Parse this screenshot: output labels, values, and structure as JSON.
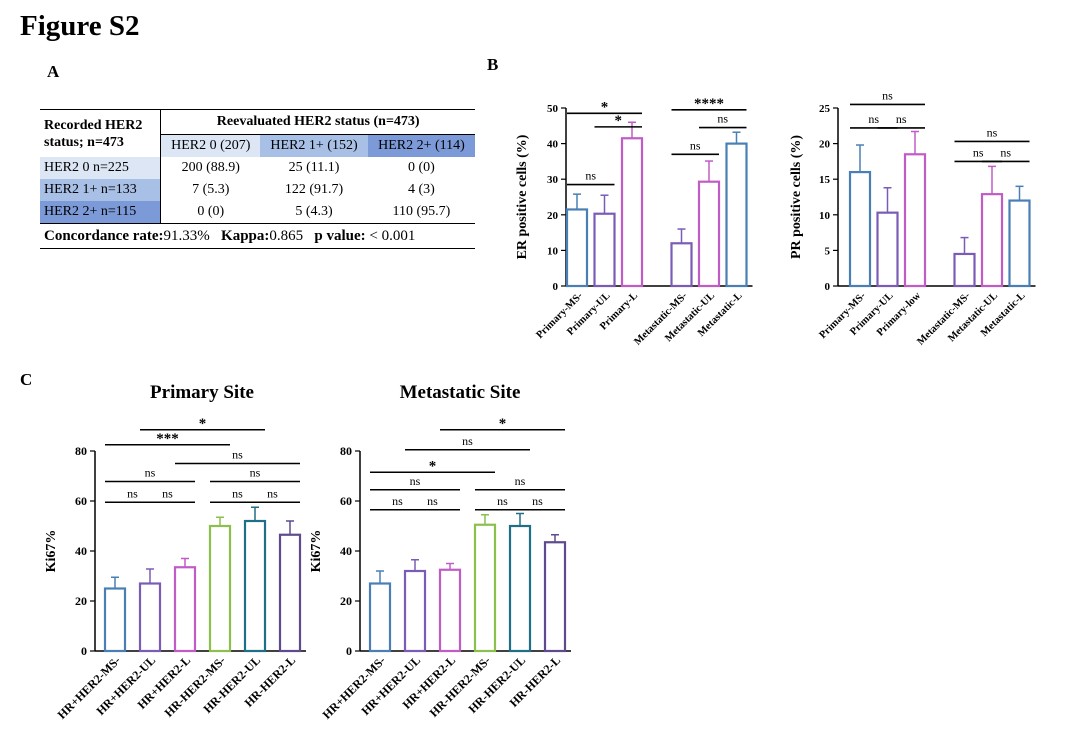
{
  "figure_title": "Figure S2",
  "panels": {
    "a": "A",
    "b": "B",
    "c": "C"
  },
  "table": {
    "row_header": [
      "Recorded HER2",
      "status; n=473"
    ],
    "col_header": "Reevaluated HER2 status (n=473)",
    "columns": [
      "HER2 0 (207)",
      "HER2 1+ (152)",
      "HER2 2+ (114)"
    ],
    "rows": [
      {
        "label": "HER2 0 n=225",
        "cells": [
          "200 (88.9)",
          "25 (11.1)",
          "0 (0)"
        ]
      },
      {
        "label": "HER2 1+ n=133",
        "cells": [
          "7 (5.3)",
          "122 (91.7)",
          "4 (3)"
        ]
      },
      {
        "label": "HER2 2+ n=115",
        "cells": [
          "0 (0)",
          "5 (4.3)",
          "110 (95.7)"
        ]
      }
    ],
    "footer": {
      "concordance_label": "Concordance rate:",
      "concordance_value": "91.33%",
      "kappa_label": "Kappa:",
      "kappa_value": "0.865",
      "p_label": "p value:",
      "p_value": "< 0.001"
    }
  },
  "colors": {
    "blue": "#4a7fb5",
    "purple": "#7a5cb7",
    "magenta": "#c15cc7",
    "green": "#8bbf4e",
    "teal": "#1f6f86",
    "darkpurple": "#5e4a8c"
  },
  "chart_data": [
    {
      "id": "er",
      "type": "bar",
      "title": "",
      "xlabel": "",
      "ylabel": "ER positive cells (%)",
      "ylim": [
        0,
        50
      ],
      "yticks": [
        0,
        10,
        20,
        30,
        40,
        50
      ],
      "categories": [
        "Primary-MS-",
        "Primary-UL",
        "Primary-L",
        "Metastatic-MS-",
        "Metastatic-UL",
        "Metastatic-L"
      ],
      "values": [
        21.5,
        20.3,
        41.5,
        12.0,
        29.3,
        40.0
      ],
      "errors": [
        4.3,
        5.2,
        4.5,
        4.0,
        5.8,
        3.2
      ],
      "bar_colors": [
        "blue",
        "purple",
        "magenta",
        "purple",
        "magenta",
        "blue"
      ],
      "annotations": [
        {
          "from": 0,
          "to": 2,
          "label": "*",
          "y": 48.5
        },
        {
          "from": 1,
          "to": 2,
          "label": "*",
          "y": 44.7
        },
        {
          "from": 0,
          "to": 1,
          "label": "ns",
          "y": 28.5
        },
        {
          "from": 3,
          "to": 5,
          "label": "****",
          "y": 49.5
        },
        {
          "from": 4,
          "to": 5,
          "label": "ns",
          "y": 44.5
        },
        {
          "from": 3,
          "to": 4,
          "label": "ns",
          "y": 37.0
        }
      ]
    },
    {
      "id": "pr",
      "type": "bar",
      "title": "",
      "xlabel": "",
      "ylabel": "PR positive cells (%)",
      "ylim": [
        0,
        25
      ],
      "yticks": [
        0,
        5,
        10,
        15,
        20,
        25
      ],
      "categories": [
        "Primary-MS-",
        "Primary-UL",
        "Primary-low",
        "Metastatic-MS-",
        "Metastatic-UL",
        "Metastatic-L"
      ],
      "values": [
        16.0,
        10.3,
        18.5,
        4.5,
        12.9,
        12.0
      ],
      "errors": [
        3.8,
        3.5,
        3.2,
        2.3,
        3.9,
        2.0
      ],
      "bar_colors": [
        "blue",
        "purple",
        "magenta",
        "purple",
        "magenta",
        "blue"
      ],
      "annotations": [
        {
          "from": 0,
          "to": 2,
          "label": "ns",
          "y": 25.5
        },
        {
          "from": 0,
          "to": 1,
          "label": "ns",
          "y": 22.2
        },
        {
          "from": 1,
          "to": 2,
          "label": "ns",
          "y": 22.2
        },
        {
          "from": 3,
          "to": 5,
          "label": "ns",
          "y": 20.3
        },
        {
          "from": 3,
          "to": 4,
          "label": "ns",
          "y": 17.5
        },
        {
          "from": 4,
          "to": 5,
          "label": "ns",
          "y": 17.5
        }
      ]
    },
    {
      "id": "ki67-primary",
      "type": "bar",
      "title": "Primary Site",
      "xlabel": "",
      "ylabel": "Ki67%",
      "ylim": [
        0,
        80
      ],
      "yticks": [
        0,
        20,
        40,
        60,
        80
      ],
      "categories": [
        "HR+HER2-MS-",
        "HR+HER2-UL",
        "HR+HER2-L",
        "HR-HER2-MS-",
        "HR-HER2-UL",
        "HR-HER2-L"
      ],
      "values": [
        25.0,
        27.0,
        33.5,
        50.0,
        52.0,
        46.5
      ],
      "errors": [
        4.5,
        5.8,
        3.5,
        3.5,
        5.5,
        5.5
      ],
      "bar_colors": [
        "blue",
        "purple",
        "magenta",
        "green",
        "teal",
        "darkpurple"
      ],
      "annotations": [
        {
          "from": 1,
          "to": 4,
          "label": "*",
          "y": 88.5
        },
        {
          "from": 0,
          "to": 3,
          "label": "***",
          "y": 82.5
        },
        {
          "from": 2,
          "to": 5,
          "label": "ns",
          "y": 75.0
        },
        {
          "from": 0,
          "to": 2,
          "label": "ns",
          "y": 67.8
        },
        {
          "from": 3,
          "to": 5,
          "label": "ns",
          "y": 67.8
        },
        {
          "from": 0,
          "to": 1,
          "label": "ns",
          "y": 59.5
        },
        {
          "from": 1,
          "to": 2,
          "label": "ns",
          "y": 59.5
        },
        {
          "from": 3,
          "to": 4,
          "label": "ns",
          "y": 59.5
        },
        {
          "from": 4,
          "to": 5,
          "label": "ns",
          "y": 59.5
        }
      ]
    },
    {
      "id": "ki67-metastatic",
      "type": "bar",
      "title": "Metastatic Site",
      "xlabel": "",
      "ylabel": "Ki67%",
      "ylim": [
        0,
        80
      ],
      "yticks": [
        0,
        20,
        40,
        60,
        80
      ],
      "categories": [
        "HR+HER2-MS-",
        "HR+HER2-UL",
        "HR+HER2-L",
        "HR-HER2-MS-",
        "HR-HER2-UL",
        "HR-HER2-L"
      ],
      "values": [
        27.0,
        32.0,
        32.5,
        50.5,
        50.0,
        43.5
      ],
      "errors": [
        5.0,
        4.5,
        2.5,
        4.0,
        5.0,
        3.0
      ],
      "bar_colors": [
        "blue",
        "purple",
        "magenta",
        "green",
        "teal",
        "darkpurple"
      ],
      "annotations": [
        {
          "from": 2,
          "to": 5,
          "label": "*",
          "y": 88.5
        },
        {
          "from": 1,
          "to": 4,
          "label": "ns",
          "y": 80.5
        },
        {
          "from": 0,
          "to": 3,
          "label": "*",
          "y": 71.5
        },
        {
          "from": 0,
          "to": 2,
          "label": "ns",
          "y": 64.5
        },
        {
          "from": 3,
          "to": 5,
          "label": "ns",
          "y": 64.5
        },
        {
          "from": 0,
          "to": 1,
          "label": "ns",
          "y": 56.5
        },
        {
          "from": 1,
          "to": 2,
          "label": "ns",
          "y": 56.5
        },
        {
          "from": 3,
          "to": 4,
          "label": "ns",
          "y": 56.5
        },
        {
          "from": 4,
          "to": 5,
          "label": "ns",
          "y": 56.5
        }
      ]
    }
  ]
}
